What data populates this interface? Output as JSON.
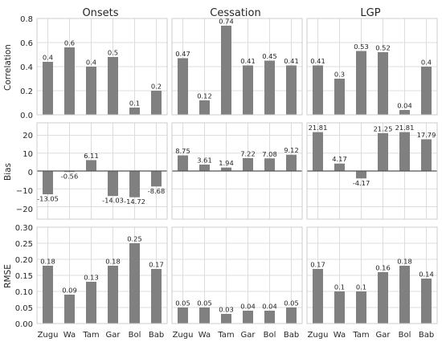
{
  "columns": [
    {
      "title": "Onsets"
    },
    {
      "title": "Cessation"
    },
    {
      "title": "LGP"
    }
  ],
  "rows": [
    {
      "ylabel": "Correlation",
      "yticks": [
        "0.0",
        "0.2",
        "0.4",
        "0.6",
        "0.8"
      ]
    },
    {
      "ylabel": "Bias",
      "yticks": [
        "−20",
        "−10",
        "0",
        "10",
        "20"
      ]
    },
    {
      "ylabel": "RMSE",
      "yticks": [
        "0.00",
        "0.05",
        "0.10",
        "0.15",
        "0.20",
        "0.25",
        "0.30"
      ]
    }
  ],
  "colors": {
    "bar": "#808080",
    "grid": "#dddddd",
    "frame": "#cccccc",
    "zero_line": "#555555",
    "text": "#262626"
  },
  "chart_data": [
    {
      "type": "bar",
      "panel": "Onsets / Correlation",
      "categories": [
        "Zugu",
        "Wa",
        "Tam",
        "Gar",
        "Bol",
        "Bab"
      ],
      "values": [
        0.44,
        0.56,
        0.4,
        0.48,
        0.06,
        0.2
      ],
      "labels": [
        "0.4",
        "0.6",
        "0.4",
        "0.5",
        "0.1",
        "0.2"
      ],
      "ylim": [
        0,
        0.8
      ],
      "yticks": [
        0,
        0.2,
        0.4,
        0.6,
        0.8
      ]
    },
    {
      "type": "bar",
      "panel": "Cessation / Correlation",
      "categories": [
        "Zugu",
        "Wa",
        "Tam",
        "Gar",
        "Bol",
        "Bab"
      ],
      "values": [
        0.47,
        0.12,
        0.74,
        0.41,
        0.45,
        0.41
      ],
      "labels": [
        "0.47",
        "0.12",
        "0.74",
        "0.41",
        "0.45",
        "0.41"
      ],
      "ylim": [
        0,
        0.8
      ],
      "yticks": [
        0,
        0.2,
        0.4,
        0.6,
        0.8
      ]
    },
    {
      "type": "bar",
      "panel": "LGP / Correlation",
      "categories": [
        "Zugu",
        "Wa",
        "Tam",
        "Gar",
        "Bol",
        "Bab"
      ],
      "values": [
        0.41,
        0.3,
        0.53,
        0.52,
        0.04,
        0.4
      ],
      "labels": [
        "0.41",
        "0.3",
        "0.53",
        "0.52",
        "0.04",
        "0.4"
      ],
      "ylim": [
        0,
        0.8
      ],
      "yticks": [
        0,
        0.2,
        0.4,
        0.6,
        0.8
      ]
    },
    {
      "type": "bar",
      "panel": "Onsets / Bias",
      "categories": [
        "Zugu",
        "Wa",
        "Tam",
        "Gar",
        "Bol",
        "Bab"
      ],
      "values": [
        -13.05,
        -0.56,
        6.11,
        -14.03,
        -14.72,
        -8.68
      ],
      "labels": [
        "-13.05",
        "-0.56",
        "6.11",
        "-14.03",
        "-14.72",
        "-8.68"
      ],
      "ylim": [
        -27,
        27
      ],
      "yticks": [
        -20,
        -10,
        0,
        10,
        20
      ]
    },
    {
      "type": "bar",
      "panel": "Cessation / Bias",
      "categories": [
        "Zugu",
        "Wa",
        "Tam",
        "Gar",
        "Bol",
        "Bab"
      ],
      "values": [
        8.75,
        3.61,
        1.94,
        7.22,
        7.08,
        9.12
      ],
      "labels": [
        "8.75",
        "3.61",
        "1.94",
        "7.22",
        "7.08",
        "9.12"
      ],
      "ylim": [
        -27,
        27
      ],
      "yticks": [
        -20,
        -10,
        0,
        10,
        20
      ]
    },
    {
      "type": "bar",
      "panel": "LGP / Bias",
      "categories": [
        "Zugu",
        "Wa",
        "Tam",
        "Gar",
        "Bol",
        "Bab"
      ],
      "values": [
        21.81,
        4.17,
        -4.17,
        21.25,
        21.81,
        17.79
      ],
      "labels": [
        "21.81",
        "4.17",
        "-4.17",
        "21.25",
        "21.81",
        "17.79"
      ],
      "ylim": [
        -27,
        27
      ],
      "yticks": [
        -20,
        -10,
        0,
        10,
        20
      ]
    },
    {
      "type": "bar",
      "panel": "Onsets / RMSE",
      "categories": [
        "Zugu",
        "Wa",
        "Tam",
        "Gar",
        "Bol",
        "Bab"
      ],
      "values": [
        0.18,
        0.09,
        0.13,
        0.18,
        0.25,
        0.17
      ],
      "labels": [
        "0.18",
        "0.09",
        "0.13",
        "0.18",
        "0.25",
        "0.17"
      ],
      "ylim": [
        0,
        0.3
      ],
      "yticks": [
        0,
        0.05,
        0.1,
        0.15,
        0.2,
        0.25,
        0.3
      ]
    },
    {
      "type": "bar",
      "panel": "Cessation / RMSE",
      "categories": [
        "Zugu",
        "Wa",
        "Tam",
        "Gar",
        "Bol",
        "Bab"
      ],
      "values": [
        0.05,
        0.05,
        0.03,
        0.04,
        0.04,
        0.05
      ],
      "labels": [
        "0.05",
        "0.05",
        "0.03",
        "0.04",
        "0.04",
        "0.05"
      ],
      "ylim": [
        0,
        0.3
      ],
      "yticks": [
        0,
        0.05,
        0.1,
        0.15,
        0.2,
        0.25,
        0.3
      ]
    },
    {
      "type": "bar",
      "panel": "LGP / RMSE",
      "categories": [
        "Zugu",
        "Wa",
        "Tam",
        "Gar",
        "Bol",
        "Bab"
      ],
      "values": [
        0.17,
        0.1,
        0.1,
        0.16,
        0.18,
        0.14
      ],
      "labels": [
        "0.17",
        "0.1",
        "0.1",
        "0.16",
        "0.18",
        "0.14"
      ],
      "ylim": [
        0,
        0.3
      ],
      "yticks": [
        0,
        0.05,
        0.1,
        0.15,
        0.2,
        0.25,
        0.3
      ]
    }
  ]
}
